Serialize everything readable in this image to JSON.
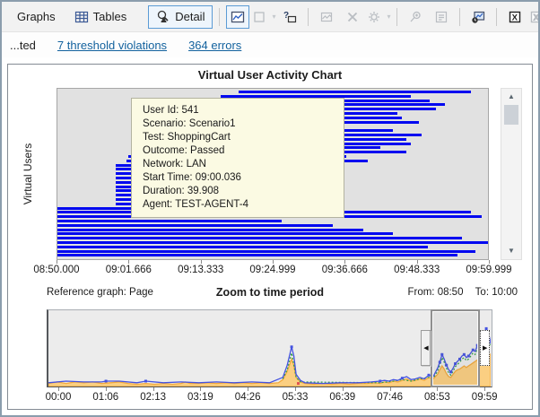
{
  "toolbar": {
    "graphs_label": "Graphs",
    "tables_label": "Tables",
    "detail_label": "Detail",
    "icons": [
      "tables-grid-icon",
      "detail-magnifier-icon",
      "chart-toggle-icon",
      "blank-shape-icon",
      "help-window-icon",
      "image-icon",
      "delete-x-icon",
      "gear-icon",
      "find-plus-icon",
      "options-window-icon",
      "time-chart-icon",
      "excel-export-icon",
      "excel-export-secondary-icon",
      "report-icon",
      "attach-icon"
    ]
  },
  "statusbar": {
    "truncated_text": "...ted",
    "links": [
      {
        "label": "7 threshold violations"
      },
      {
        "label": "364 errors"
      }
    ]
  },
  "main_chart": {
    "type": "gantt",
    "title": "Virtual User Activity Chart",
    "y_axis_label": "Virtual Users",
    "x_ticks": [
      "08:50.000",
      "09:01.666",
      "09:13.333",
      "09:24.999",
      "09:36.666",
      "09:48.333",
      "09:59.999"
    ],
    "bar_color": "#0008f0",
    "tooltip_lines": [
      "User Id: 541",
      "Scenario: Scenario1",
      "Test: ShoppingCart",
      "Outcome: Passed",
      "Network: LAN",
      "Start Time: 09:00.036",
      "Duration: 39.908",
      "Agent: TEST-AGENT-4"
    ],
    "bars": [
      {
        "s": 42,
        "e": 96
      },
      {
        "s": 38,
        "e": 82
      },
      {
        "s": 36,
        "e": 86.5
      },
      {
        "s": 33,
        "e": 90
      },
      {
        "s": 31,
        "e": 88
      },
      {
        "s": 29,
        "e": 79
      },
      {
        "s": 27,
        "e": 80
      },
      {
        "s": 25,
        "e": 84
      },
      {
        "s": 23,
        "e": 63
      },
      {
        "s": 21,
        "e": 78
      },
      {
        "s": 20,
        "e": 84.5
      },
      {
        "s": 19,
        "e": 81
      },
      {
        "s": 18,
        "e": 82
      },
      {
        "s": 17.5,
        "e": 75
      },
      {
        "s": 17,
        "e": 81
      },
      {
        "s": 16.5,
        "e": 67
      },
      {
        "s": 16,
        "e": 72
      },
      {
        "s": 13.5,
        "e": 62
      },
      {
        "s": 13.5,
        "e": 48
      },
      {
        "s": 13.5,
        "e": 55
      },
      {
        "s": 13.5,
        "e": 53
      },
      {
        "s": 13.5,
        "e": 50
      },
      {
        "s": 13.5,
        "e": 53
      },
      {
        "s": 13.5,
        "e": 46
      },
      {
        "s": 13.5,
        "e": 40
      },
      {
        "s": 13.5,
        "e": 58
      },
      {
        "s": 13.5,
        "e": 57
      },
      {
        "s": 0,
        "e": 58.5
      },
      {
        "s": 0,
        "e": 96
      },
      {
        "s": 0,
        "e": 98.5
      },
      {
        "s": 0,
        "e": 52
      },
      {
        "s": 0,
        "e": 64
      },
      {
        "s": 0,
        "e": 71
      },
      {
        "s": 0,
        "e": 78
      },
      {
        "s": 0,
        "e": 94
      },
      {
        "s": 0,
        "e": 100
      },
      {
        "s": 0,
        "e": 86
      },
      {
        "s": 0,
        "e": 97
      },
      {
        "s": 0,
        "e": 93
      }
    ]
  },
  "reference_chart": {
    "type": "line",
    "label": "Reference graph: Page",
    "title": "Zoom to time period",
    "from_label": "From: 08:50",
    "to_label": "To: 10:00",
    "x_ticks": [
      "00:00",
      "01:06",
      "02:13",
      "03:19",
      "04:26",
      "05:33",
      "06:39",
      "07:46",
      "08:53",
      "09:59"
    ],
    "selection": {
      "start_pct": 86.5,
      "end_pct": 97.6
    },
    "colors": {
      "orange_fill": "#fbcf82",
      "orange_stroke": "#f3a93c",
      "blue": "#4553e0",
      "green": "#2f9e44",
      "red": "#e05050"
    },
    "series": {
      "orange": [
        [
          0,
          4
        ],
        [
          2,
          6
        ],
        [
          4,
          4
        ],
        [
          6,
          6
        ],
        [
          8,
          5
        ],
        [
          10,
          6
        ],
        [
          12,
          4
        ],
        [
          14,
          5
        ],
        [
          16,
          6
        ],
        [
          18,
          4
        ],
        [
          20,
          3
        ],
        [
          22,
          4
        ],
        [
          24,
          3
        ],
        [
          26,
          4
        ],
        [
          28,
          3
        ],
        [
          30,
          4
        ],
        [
          31,
          6
        ],
        [
          32,
          4
        ],
        [
          34,
          4
        ],
        [
          36,
          5
        ],
        [
          38,
          4
        ],
        [
          40,
          5
        ],
        [
          42,
          4
        ],
        [
          44,
          5
        ],
        [
          46,
          4
        ],
        [
          48,
          5
        ],
        [
          50,
          4
        ],
        [
          52,
          5
        ],
        [
          53,
          9
        ],
        [
          54,
          20
        ],
        [
          55,
          36
        ],
        [
          55.5,
          28
        ],
        [
          56,
          12
        ],
        [
          57,
          6
        ],
        [
          58,
          4
        ],
        [
          60,
          3
        ],
        [
          62,
          4
        ],
        [
          64,
          3
        ],
        [
          66,
          4
        ],
        [
          68,
          3
        ],
        [
          70,
          4
        ],
        [
          72,
          4
        ],
        [
          74,
          5
        ],
        [
          75,
          4
        ],
        [
          76,
          6
        ],
        [
          77,
          5
        ],
        [
          78,
          7
        ],
        [
          79,
          6
        ],
        [
          80,
          8
        ],
        [
          81,
          10
        ],
        [
          82,
          7
        ],
        [
          83,
          8
        ],
        [
          84,
          10
        ],
        [
          85,
          8
        ],
        [
          86,
          12
        ],
        [
          87,
          10
        ],
        [
          88,
          16
        ],
        [
          88.5,
          22
        ],
        [
          89,
          27
        ],
        [
          89.5,
          23
        ],
        [
          90,
          17
        ],
        [
          90.5,
          13
        ],
        [
          91,
          12
        ],
        [
          91.5,
          16
        ],
        [
          92,
          20
        ],
        [
          92.5,
          22
        ],
        [
          93,
          23
        ],
        [
          93.5,
          25
        ],
        [
          94,
          27
        ],
        [
          94.5,
          25
        ],
        [
          95,
          27
        ],
        [
          95.5,
          29
        ],
        [
          96,
          31
        ],
        [
          96.5,
          33
        ],
        [
          97,
          35
        ],
        [
          97.5,
          37
        ],
        [
          98,
          39
        ],
        [
          98.5,
          41
        ],
        [
          99,
          43
        ],
        [
          99.5,
          45
        ],
        [
          100,
          41
        ]
      ],
      "blue": [
        [
          0,
          5
        ],
        [
          4,
          7
        ],
        [
          8,
          6
        ],
        [
          12,
          6
        ],
        [
          13,
          7
        ],
        [
          16,
          7
        ],
        [
          20,
          5
        ],
        [
          22,
          7
        ],
        [
          26,
          5
        ],
        [
          30,
          6
        ],
        [
          34,
          5
        ],
        [
          38,
          6
        ],
        [
          42,
          5
        ],
        [
          46,
          6
        ],
        [
          50,
          5
        ],
        [
          53,
          12
        ],
        [
          54,
          28
        ],
        [
          55,
          52
        ],
        [
          55.5,
          40
        ],
        [
          56,
          16
        ],
        [
          57,
          8
        ],
        [
          58,
          5
        ],
        [
          62,
          4
        ],
        [
          66,
          5
        ],
        [
          70,
          5
        ],
        [
          73,
          6
        ],
        [
          75,
          7
        ],
        [
          76,
          8
        ],
        [
          77,
          7
        ],
        [
          78,
          9
        ],
        [
          79,
          8
        ],
        [
          80,
          11
        ],
        [
          81,
          13
        ],
        [
          82,
          9
        ],
        [
          83,
          10
        ],
        [
          84,
          12
        ],
        [
          85,
          10
        ],
        [
          86,
          15
        ],
        [
          87,
          13
        ],
        [
          88,
          24
        ],
        [
          88.5,
          32
        ],
        [
          89,
          42
        ],
        [
          89.5,
          36
        ],
        [
          90,
          28
        ],
        [
          90.5,
          22
        ],
        [
          91,
          19
        ],
        [
          91.5,
          24
        ],
        [
          92,
          30
        ],
        [
          92.5,
          33
        ],
        [
          93,
          36
        ],
        [
          93.5,
          40
        ],
        [
          94,
          42
        ],
        [
          94.5,
          38
        ],
        [
          95,
          40
        ],
        [
          95.5,
          44
        ],
        [
          96,
          48
        ],
        [
          96.5,
          46
        ],
        [
          97,
          54
        ],
        [
          97.5,
          60
        ],
        [
          98,
          66
        ],
        [
          98.5,
          70
        ],
        [
          99,
          76
        ],
        [
          99.5,
          70
        ],
        [
          100,
          58
        ]
      ],
      "green": [
        [
          53,
          10
        ],
        [
          54,
          22
        ],
        [
          55,
          44
        ],
        [
          56,
          12
        ],
        [
          57,
          6
        ],
        [
          75,
          5
        ],
        [
          78,
          7
        ],
        [
          80,
          9
        ],
        [
          82,
          7
        ],
        [
          84,
          10
        ],
        [
          86,
          12
        ],
        [
          87,
          11
        ],
        [
          88,
          20
        ],
        [
          88.5,
          28
        ],
        [
          89,
          38
        ],
        [
          89.5,
          32
        ],
        [
          90,
          24
        ],
        [
          90.5,
          18
        ],
        [
          91,
          15
        ],
        [
          91.5,
          20
        ],
        [
          92,
          26
        ],
        [
          92.5,
          29
        ],
        [
          93,
          32
        ],
        [
          93.5,
          36
        ],
        [
          94,
          38
        ],
        [
          94.5,
          34
        ],
        [
          95,
          36
        ],
        [
          95.5,
          40
        ],
        [
          96,
          44
        ],
        [
          96.5,
          42
        ],
        [
          97,
          50
        ],
        [
          97.5,
          56
        ],
        [
          98,
          62
        ],
        [
          98.5,
          66
        ],
        [
          99,
          72
        ],
        [
          99.5,
          66
        ],
        [
          100,
          54
        ]
      ],
      "markers": [
        [
          13,
          7
        ],
        [
          22,
          7
        ],
        [
          55,
          52
        ],
        [
          75,
          7
        ],
        [
          80,
          11
        ],
        [
          86,
          15
        ],
        [
          88.5,
          32
        ],
        [
          89,
          42
        ],
        [
          90,
          28
        ],
        [
          91,
          19
        ],
        [
          92,
          30
        ],
        [
          93,
          36
        ],
        [
          94,
          42
        ],
        [
          95,
          40
        ],
        [
          96,
          48
        ],
        [
          97,
          54
        ],
        [
          98,
          66
        ],
        [
          99,
          76
        ],
        [
          100,
          58
        ]
      ],
      "red_markers": [
        [
          56.5,
          4
        ]
      ]
    }
  }
}
